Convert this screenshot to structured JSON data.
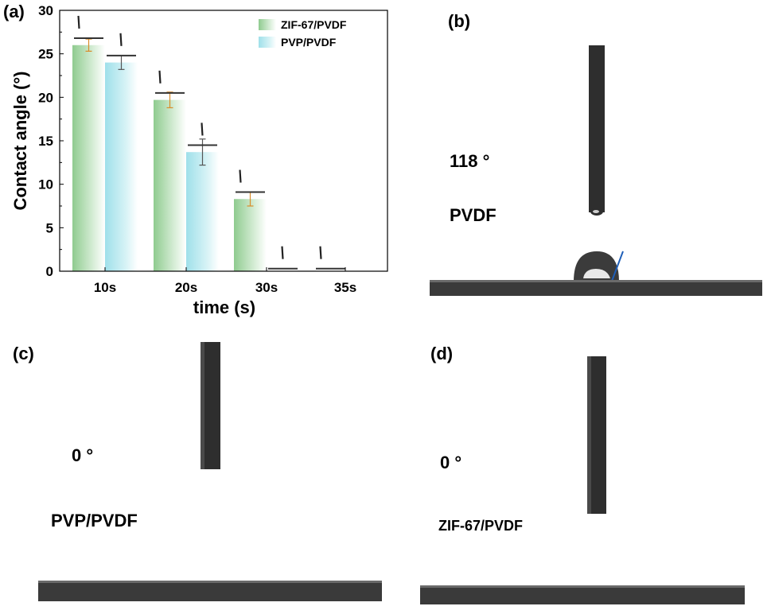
{
  "panels": {
    "a": {
      "letter": "(a)"
    },
    "b": {
      "letter": "(b)",
      "angle_label": "118 °",
      "sample_label": "PVDF"
    },
    "c": {
      "letter": "(c)",
      "angle_label": "0 °",
      "sample_label": "PVP/PVDF"
    },
    "d": {
      "letter": "(d)",
      "angle_label": "0 °",
      "sample_label": "ZIF-67/PVDF"
    }
  },
  "colors": {
    "zif": "#9ad19a",
    "pvp": "#a8e4ec",
    "error_zif": "#d98c2a",
    "error_pvp": "#555555",
    "substrate": "#3a3a3a",
    "needle": "#2e2e2e",
    "tangent": "#1f5fb8"
  },
  "chart_data": {
    "type": "bar",
    "xlabel": "time (s)",
    "ylabel": "Contact angle (°)",
    "ylim": [
      0,
      30
    ],
    "yticks": [
      "0",
      "5",
      "10",
      "15",
      "20",
      "25",
      "30"
    ],
    "categories": [
      "10s",
      "20s",
      "30s",
      "35s"
    ],
    "legend_position": "top-right",
    "grid": false,
    "series": [
      {
        "name": "ZIF-67/PVDF",
        "values": [
          26.0,
          19.7,
          8.3,
          0
        ],
        "errors": [
          0.7,
          0.9,
          0.8,
          0
        ]
      },
      {
        "name": "PVP/PVDF",
        "values": [
          24.0,
          13.7,
          0,
          0
        ],
        "errors": [
          0.8,
          1.5,
          0,
          0
        ]
      }
    ]
  }
}
